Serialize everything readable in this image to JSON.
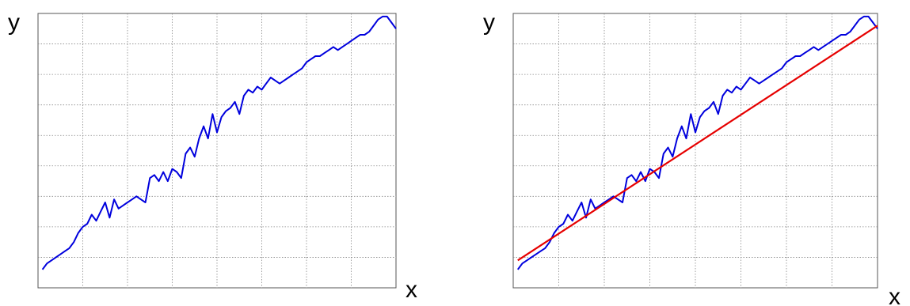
{
  "colors": {
    "series": "#0000dd",
    "trend": "#e60000",
    "grid": "#888888",
    "frame": "#555555"
  },
  "chart_data": [
    {
      "type": "line",
      "title": "",
      "xlabel": "x",
      "ylabel": "y",
      "xlim": [
        0,
        80
      ],
      "ylim": [
        0,
        9
      ],
      "grid": true,
      "legend": "none",
      "series": [
        {
          "x": [
            1,
            2,
            3,
            4,
            5,
            6,
            7,
            8,
            9,
            10,
            11,
            12,
            13,
            14,
            15,
            16,
            17,
            18,
            19,
            20,
            21,
            22,
            23,
            24,
            25,
            26,
            27,
            28,
            29,
            30,
            31,
            32,
            33,
            34,
            35,
            36,
            37,
            38,
            39,
            40,
            41,
            42,
            43,
            44,
            45,
            46,
            47,
            48,
            49,
            50,
            51,
            52,
            53,
            54,
            55,
            56,
            57,
            58,
            59,
            60,
            61,
            62,
            63,
            64,
            65,
            66,
            67,
            68,
            69,
            70,
            71,
            72,
            73,
            74,
            75,
            76,
            77,
            78,
            79,
            80
          ],
          "values": [
            0.6,
            0.8,
            0.9,
            1.0,
            1.1,
            1.2,
            1.3,
            1.5,
            1.8,
            2.0,
            2.1,
            2.4,
            2.2,
            2.5,
            2.8,
            2.3,
            2.9,
            2.6,
            2.7,
            2.8,
            2.9,
            3.0,
            2.9,
            2.8,
            3.6,
            3.7,
            3.5,
            3.8,
            3.5,
            3.9,
            3.8,
            3.6,
            4.4,
            4.6,
            4.3,
            4.9,
            5.3,
            4.9,
            5.7,
            5.1,
            5.6,
            5.8,
            5.9,
            6.1,
            5.7,
            6.3,
            6.5,
            6.4,
            6.6,
            6.5,
            6.7,
            6.9,
            6.8,
            6.7,
            6.8,
            6.9,
            7.0,
            7.1,
            7.2,
            7.4,
            7.5,
            7.6,
            7.6,
            7.7,
            7.8,
            7.9,
            7.8,
            7.9,
            8.0,
            8.1,
            8.2,
            8.3,
            8.3,
            8.4,
            8.6,
            8.8,
            8.9,
            8.9,
            8.7,
            8.5
          ]
        }
      ]
    },
    {
      "type": "line",
      "title": "",
      "xlabel": "x",
      "ylabel": "y",
      "xlim": [
        0,
        80
      ],
      "ylim": [
        0,
        9
      ],
      "grid": true,
      "legend": "none",
      "series": [
        {
          "x": [
            1,
            2,
            3,
            4,
            5,
            6,
            7,
            8,
            9,
            10,
            11,
            12,
            13,
            14,
            15,
            16,
            17,
            18,
            19,
            20,
            21,
            22,
            23,
            24,
            25,
            26,
            27,
            28,
            29,
            30,
            31,
            32,
            33,
            34,
            35,
            36,
            37,
            38,
            39,
            40,
            41,
            42,
            43,
            44,
            45,
            46,
            47,
            48,
            49,
            50,
            51,
            52,
            53,
            54,
            55,
            56,
            57,
            58,
            59,
            60,
            61,
            62,
            63,
            64,
            65,
            66,
            67,
            68,
            69,
            70,
            71,
            72,
            73,
            74,
            75,
            76,
            77,
            78,
            79,
            80
          ],
          "values": [
            0.6,
            0.8,
            0.9,
            1.0,
            1.1,
            1.2,
            1.3,
            1.5,
            1.8,
            2.0,
            2.1,
            2.4,
            2.2,
            2.5,
            2.8,
            2.3,
            2.9,
            2.6,
            2.7,
            2.8,
            2.9,
            3.0,
            2.9,
            2.8,
            3.6,
            3.7,
            3.5,
            3.8,
            3.5,
            3.9,
            3.8,
            3.6,
            4.4,
            4.6,
            4.3,
            4.9,
            5.3,
            4.9,
            5.7,
            5.1,
            5.6,
            5.8,
            5.9,
            6.1,
            5.7,
            6.3,
            6.5,
            6.4,
            6.6,
            6.5,
            6.7,
            6.9,
            6.8,
            6.7,
            6.8,
            6.9,
            7.0,
            7.1,
            7.2,
            7.4,
            7.5,
            7.6,
            7.6,
            7.7,
            7.8,
            7.9,
            7.8,
            7.9,
            8.0,
            8.1,
            8.2,
            8.3,
            8.3,
            8.4,
            8.6,
            8.8,
            8.9,
            8.9,
            8.7,
            8.5
          ]
        },
        {
          "type": "trendline",
          "x": [
            1,
            80
          ],
          "values": [
            0.9,
            8.6
          ]
        }
      ]
    }
  ]
}
